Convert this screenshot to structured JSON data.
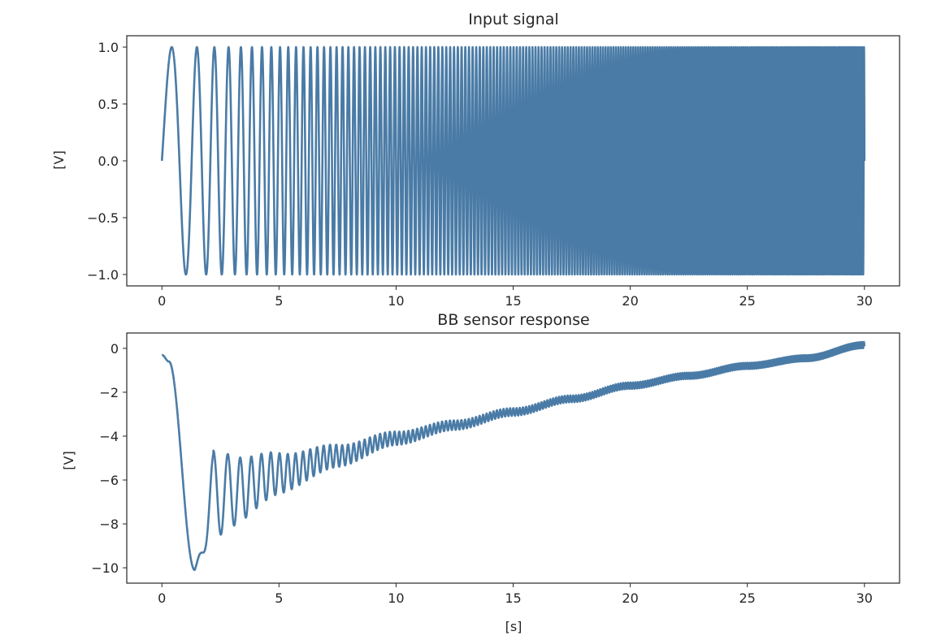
{
  "chart_data": [
    {
      "type": "line",
      "title": "Input signal",
      "xlabel": "",
      "ylabel": "[V]",
      "xlim": [
        -1.5,
        31.5
      ],
      "ylim": [
        -1.1,
        1.1
      ],
      "xticks": [
        0,
        5,
        10,
        15,
        20,
        25,
        30
      ],
      "yticks": [
        -1.0,
        -0.5,
        0.0,
        0.5,
        1.0
      ],
      "ytick_labels": [
        "−1.0",
        "−0.5",
        "0.0",
        "0.5",
        "1.0"
      ],
      "grid": false,
      "line_color": "#4a7ba6",
      "series": [
        {
          "kind": "chirp",
          "x_range": [
            0,
            30
          ],
          "amplitude": 1.0,
          "phase_rate_coeff": 0.5,
          "phase_accel_coeff": 0.225,
          "approx_points": [
            [
              0,
              0.0
            ],
            [
              1.0,
              1.0
            ],
            [
              1.8,
              -1.0
            ],
            [
              2.4,
              1.0
            ],
            [
              2.9,
              -1.0
            ],
            [
              3.3,
              1.0
            ],
            [
              30,
              -0.8
            ]
          ]
        }
      ]
    },
    {
      "type": "line",
      "title": "BB sensor response",
      "xlabel": "[s]",
      "ylabel": "[V]",
      "xlim": [
        -1.5,
        31.5
      ],
      "ylim": [
        -10.7,
        0.7
      ],
      "xticks": [
        0,
        5,
        10,
        15,
        20,
        25,
        30
      ],
      "yticks": [
        0,
        -2,
        -4,
        -6,
        -8,
        -10
      ],
      "ytick_labels": [
        "0",
        "−2",
        "−4",
        "−6",
        "−8",
        "−10"
      ],
      "grid": false,
      "line_color": "#4a7ba6",
      "series": [
        {
          "kind": "envelope-oscillation",
          "x_range": [
            0,
            30
          ],
          "initial_value": -0.3,
          "approx_points": [
            [
              0,
              -0.3
            ],
            [
              0.3,
              -0.6
            ],
            [
              1.4,
              -10.1
            ],
            [
              2.2,
              -4.3
            ],
            [
              2.8,
              -8.3
            ],
            [
              3.2,
              -4.5
            ],
            [
              3.7,
              -7.5
            ],
            [
              5,
              -5.5
            ],
            [
              10,
              -3.8
            ],
            [
              15,
              -2.7
            ],
            [
              20,
              -1.3
            ],
            [
              25,
              -0.4
            ],
            [
              30,
              0.1
            ]
          ],
          "oscillation_amplitude_at": [
            [
              3,
              1.6
            ],
            [
              10,
              0.45
            ],
            [
              20,
              0.2
            ],
            [
              30,
              0.15
            ]
          ]
        }
      ]
    }
  ]
}
